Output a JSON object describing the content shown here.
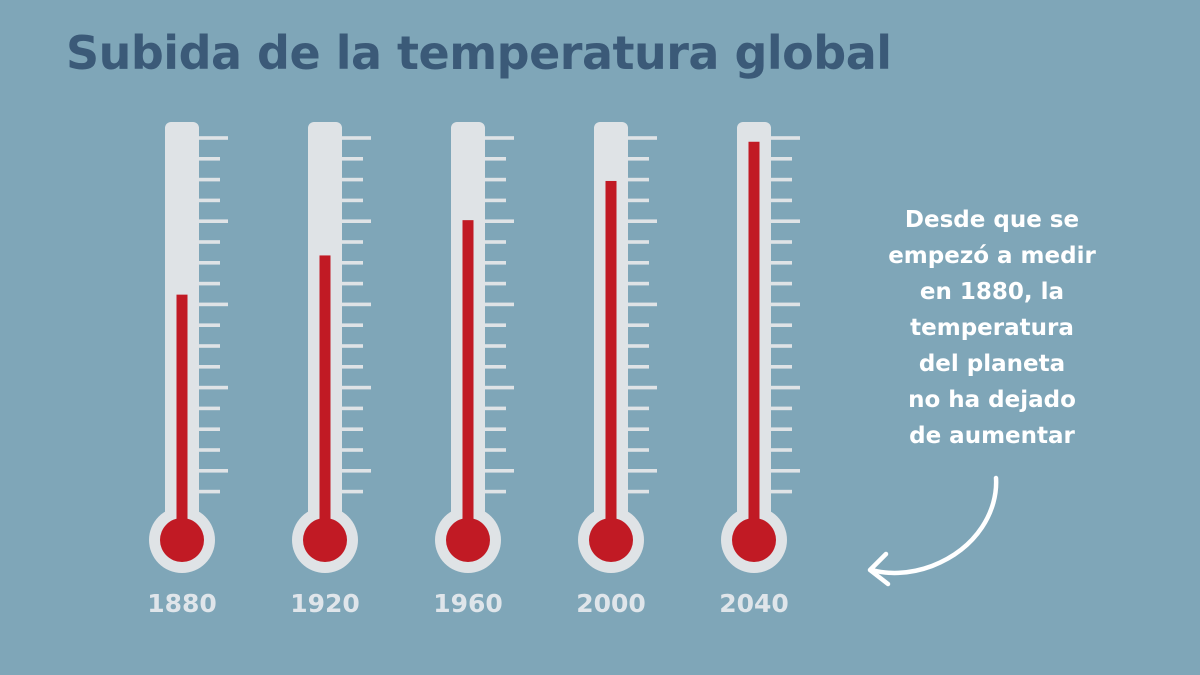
{
  "title": "Subida de la temperatura global",
  "annotation_lines": [
    "Desde que se",
    "empezó a medir",
    "en 1880, la",
    "temperatura",
    "del planeta",
    "no ha dejado",
    "de aumentar"
  ],
  "colors": {
    "background": "#7fa6b8",
    "title": "#3b5a78",
    "tube": "#dfe3e6",
    "mercury": "#c11a24",
    "year_label": "#dfe5ea",
    "annotation": "#ffffff"
  },
  "icons": {
    "annotation_arrow": "curved-arrow-icon"
  },
  "chart_data": {
    "type": "bar",
    "style": "thermometer",
    "categories": [
      "1880",
      "1920",
      "1960",
      "2000",
      "2040"
    ],
    "values": [
      0.58,
      0.68,
      0.77,
      0.87,
      0.97
    ],
    "value_scale": "fraction of tube filled",
    "ylim": [
      0,
      1
    ],
    "grid": false,
    "title": "Subida de la temperatura global"
  }
}
